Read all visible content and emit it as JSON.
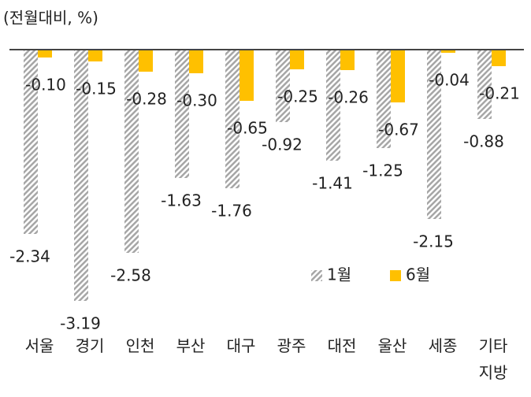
{
  "chart_data": {
    "type": "bar",
    "title": "(전월대비, %)",
    "categories": [
      "서울",
      "경기",
      "인천",
      "부산",
      "대구",
      "광주",
      "대전",
      "울산",
      "세종",
      "기타 지방"
    ],
    "series": [
      {
        "name": "1월",
        "color": "#a6a6a6",
        "pattern": "hatch",
        "values": [
          -2.34,
          -3.19,
          -2.58,
          -1.63,
          -1.76,
          -0.92,
          -1.41,
          -1.25,
          -2.15,
          -0.88
        ],
        "value_labels": [
          "-2.34",
          "-3.19",
          "-2.58",
          "-1.63",
          "-1.76",
          "-0.92",
          "-1.41",
          "-1.25",
          "-2.15",
          "-0.88"
        ]
      },
      {
        "name": "6월",
        "color": "#ffc000",
        "pattern": "solid",
        "values": [
          -0.1,
          -0.15,
          -0.28,
          -0.3,
          -0.65,
          -0.25,
          -0.26,
          -0.67,
          -0.04,
          -0.21
        ],
        "value_labels": [
          "-0.10",
          "-0.15",
          "-0.28",
          "-0.30",
          "-0.65",
          "-0.25",
          "-0.26",
          "-0.67",
          "-0.04",
          "-0.21"
        ]
      }
    ],
    "ylim": [
      -4,
      0
    ],
    "legend": "bottom-right"
  }
}
